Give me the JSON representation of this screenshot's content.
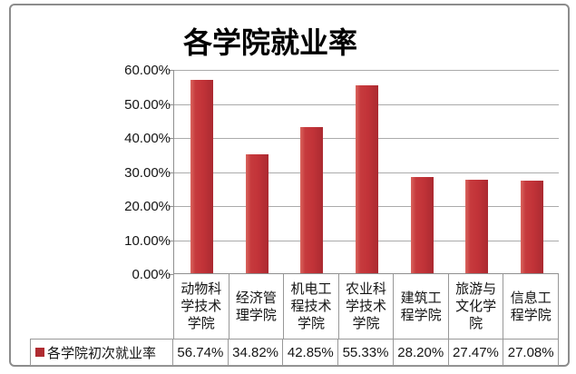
{
  "title": "各学院就业率",
  "colors": {
    "bar_light": "#d9655e",
    "bar_main": "#c23338",
    "bar_dark": "#ab2a31",
    "legend_square": "#b02c31",
    "gridline": "#ababab",
    "table_border": "#989898"
  },
  "legend": {
    "label": "各学院初次就业率"
  },
  "chart_data": {
    "type": "bar",
    "title": "各学院就业率",
    "categories": [
      "动物科学技术学院",
      "经济管理学院",
      "机电工程技术学院",
      "农业科学技术学院",
      "建筑工程学院",
      "旅游与文化学院",
      "信息工程学院"
    ],
    "series": [
      {
        "name": "各学院初次就业率",
        "values": [
          56.74,
          34.82,
          42.85,
          55.33,
          28.2,
          27.47,
          27.08
        ]
      }
    ],
    "value_labels": [
      "56.74%",
      "34.82%",
      "42.85%",
      "55.33%",
      "28.20%",
      "27.47%",
      "27.08%"
    ],
    "y_tick_labels": [
      "60.00%",
      "50.00%",
      "40.00%",
      "30.00%",
      "20.00%",
      "10.00%",
      "0.00%"
    ],
    "ylim": [
      0,
      60
    ],
    "xlabel": "",
    "ylabel": "",
    "grid": true,
    "legend_position": "bottom-table"
  }
}
